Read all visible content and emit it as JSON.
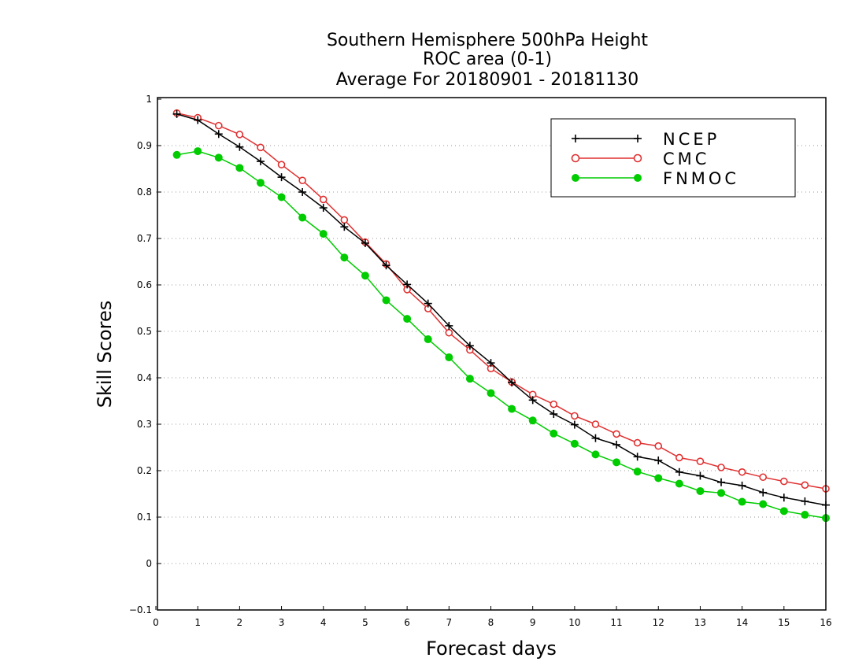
{
  "chart_data": {
    "type": "line",
    "title": [
      "Southern Hemisphere 500hPa Height",
      "ROC area (0-1)",
      "Average For 20180901 - 20181130"
    ],
    "xlabel": "Forecast days",
    "ylabel": "Skill Scores",
    "xlim": [
      0,
      16
    ],
    "ylim": [
      -0.1,
      1
    ],
    "x_ticks": [
      "0",
      "1",
      "2",
      "3",
      "4",
      "5",
      "6",
      "7",
      "8",
      "9",
      "10",
      "11",
      "12",
      "13",
      "14",
      "15",
      "16"
    ],
    "y_ticks": [
      "−0.1",
      "0",
      "0.1",
      "0.2",
      "0.3",
      "0.4",
      "0.5",
      "0.6",
      "0.7",
      "0.8",
      "0.9",
      "1"
    ],
    "grid": "horizontal dotted",
    "legend_position": "top-right",
    "x": [
      0.5,
      1,
      1.5,
      2,
      2.5,
      3,
      3.5,
      4,
      4.5,
      5,
      5.5,
      6,
      6.5,
      7,
      7.5,
      8,
      8.5,
      9,
      9.5,
      10,
      10.5,
      11,
      11.5,
      12,
      12.5,
      13,
      13.5,
      14,
      14.5,
      15,
      15.5,
      16
    ],
    "series": [
      {
        "name": "NCEP",
        "color": "#000000",
        "marker": "plus",
        "values": [
          0.968,
          0.955,
          0.925,
          0.897,
          0.866,
          0.832,
          0.8,
          0.766,
          0.725,
          0.69,
          0.642,
          0.601,
          0.56,
          0.512,
          0.469,
          0.432,
          0.39,
          0.352,
          0.322,
          0.299,
          0.27,
          0.256,
          0.23,
          0.222,
          0.197,
          0.189,
          0.175,
          0.168,
          0.153,
          0.142,
          0.134,
          0.126
        ]
      },
      {
        "name": "CMC",
        "color": "#e03030",
        "marker": "open-circle",
        "values": [
          0.97,
          0.96,
          0.943,
          0.924,
          0.896,
          0.859,
          0.825,
          0.784,
          0.74,
          0.692,
          0.645,
          0.59,
          0.549,
          0.497,
          0.46,
          0.42,
          0.391,
          0.364,
          0.343,
          0.318,
          0.3,
          0.279,
          0.26,
          0.253,
          0.228,
          0.22,
          0.207,
          0.197,
          0.186,
          0.177,
          0.169,
          0.161
        ]
      },
      {
        "name": "FNMOC",
        "color": "#00cc00",
        "marker": "filled-circle",
        "values": [
          0.88,
          0.888,
          0.874,
          0.852,
          0.82,
          0.789,
          0.745,
          0.71,
          0.659,
          0.62,
          0.567,
          0.527,
          0.483,
          0.444,
          0.398,
          0.367,
          0.333,
          0.308,
          0.28,
          0.258,
          0.235,
          0.218,
          0.198,
          0.184,
          0.172,
          0.156,
          0.152,
          0.133,
          0.128,
          0.113,
          0.105,
          0.098
        ]
      }
    ]
  }
}
